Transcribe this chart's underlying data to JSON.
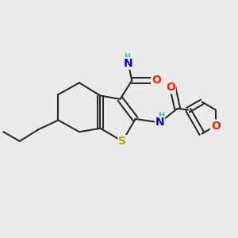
{
  "bg_color": "#ebebeb",
  "bond_color": "#2a2a2a",
  "bond_width": 1.5,
  "atom_colors": {
    "S": "#b8a000",
    "O": "#ff2000",
    "N": "#0000e0",
    "NH2_color": "#4ab5b5",
    "NH_color": "#4ab5b5",
    "C": "#2a2a2a"
  }
}
